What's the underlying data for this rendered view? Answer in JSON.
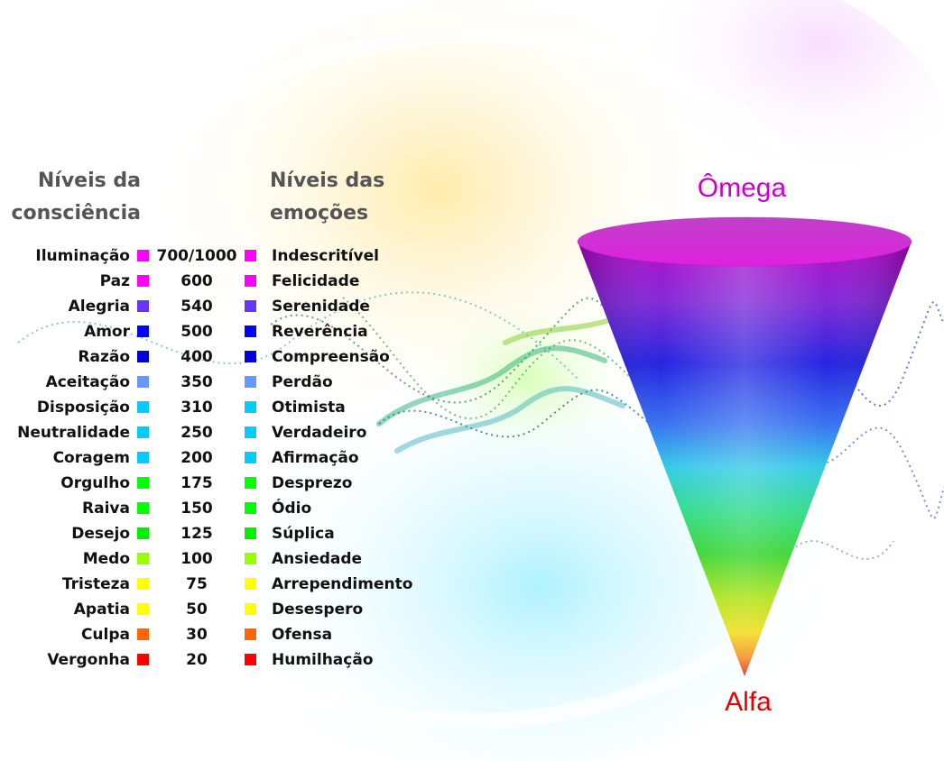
{
  "headers": {
    "consciousness": [
      "Níveis da",
      "consciência"
    ],
    "emotions": [
      "Níveis das",
      "emoções"
    ]
  },
  "cone": {
    "top_label": "Ômega",
    "bottom_label": "Alfa",
    "top_color": "#cc00cc",
    "bottom_color": "#e60000"
  },
  "levels": [
    {
      "consciousness": "Iluminação",
      "value": "700/1000",
      "emotion": "Indescritível",
      "color": "#ff00ff"
    },
    {
      "consciousness": "Paz",
      "value": "600",
      "emotion": "Felicidade",
      "color": "#ff00ff"
    },
    {
      "consciousness": "Alegria",
      "value": "540",
      "emotion": "Serenidade",
      "color": "#6633ff"
    },
    {
      "consciousness": "Amor",
      "value": "500",
      "emotion": "Reverência",
      "color": "#0000ff"
    },
    {
      "consciousness": "Razão",
      "value": "400",
      "emotion": "Compreensão",
      "color": "#0000dd"
    },
    {
      "consciousness": "Aceitação",
      "value": "350",
      "emotion": "Perdão",
      "color": "#6699ff"
    },
    {
      "consciousness": "Disposição",
      "value": "310",
      "emotion": "Otimista",
      "color": "#00ccff"
    },
    {
      "consciousness": "Neutralidade",
      "value": "250",
      "emotion": "Verdadeiro",
      "color": "#00ccff"
    },
    {
      "consciousness": "Coragem",
      "value": "200",
      "emotion": "Afirmação",
      "color": "#00ccff"
    },
    {
      "consciousness": "Orgulho",
      "value": "175",
      "emotion": "Desprezo",
      "color": "#00ff00"
    },
    {
      "consciousness": "Raiva",
      "value": "150",
      "emotion": "Ódio",
      "color": "#00ff00"
    },
    {
      "consciousness": "Desejo",
      "value": "125",
      "emotion": "Súplica",
      "color": "#00ee00"
    },
    {
      "consciousness": "Medo",
      "value": "100",
      "emotion": "Ansiedade",
      "color": "#99ff00"
    },
    {
      "consciousness": "Tristeza",
      "value": "75",
      "emotion": "Arrependimento",
      "color": "#ffff00"
    },
    {
      "consciousness": "Apatia",
      "value": "50",
      "emotion": "Desespero",
      "color": "#ffff00"
    },
    {
      "consciousness": "Culpa",
      "value": "30",
      "emotion": "Ofensa",
      "color": "#ff6600"
    },
    {
      "consciousness": "Vergonha",
      "value": "20",
      "emotion": "Humilhação",
      "color": "#ff0000"
    }
  ]
}
